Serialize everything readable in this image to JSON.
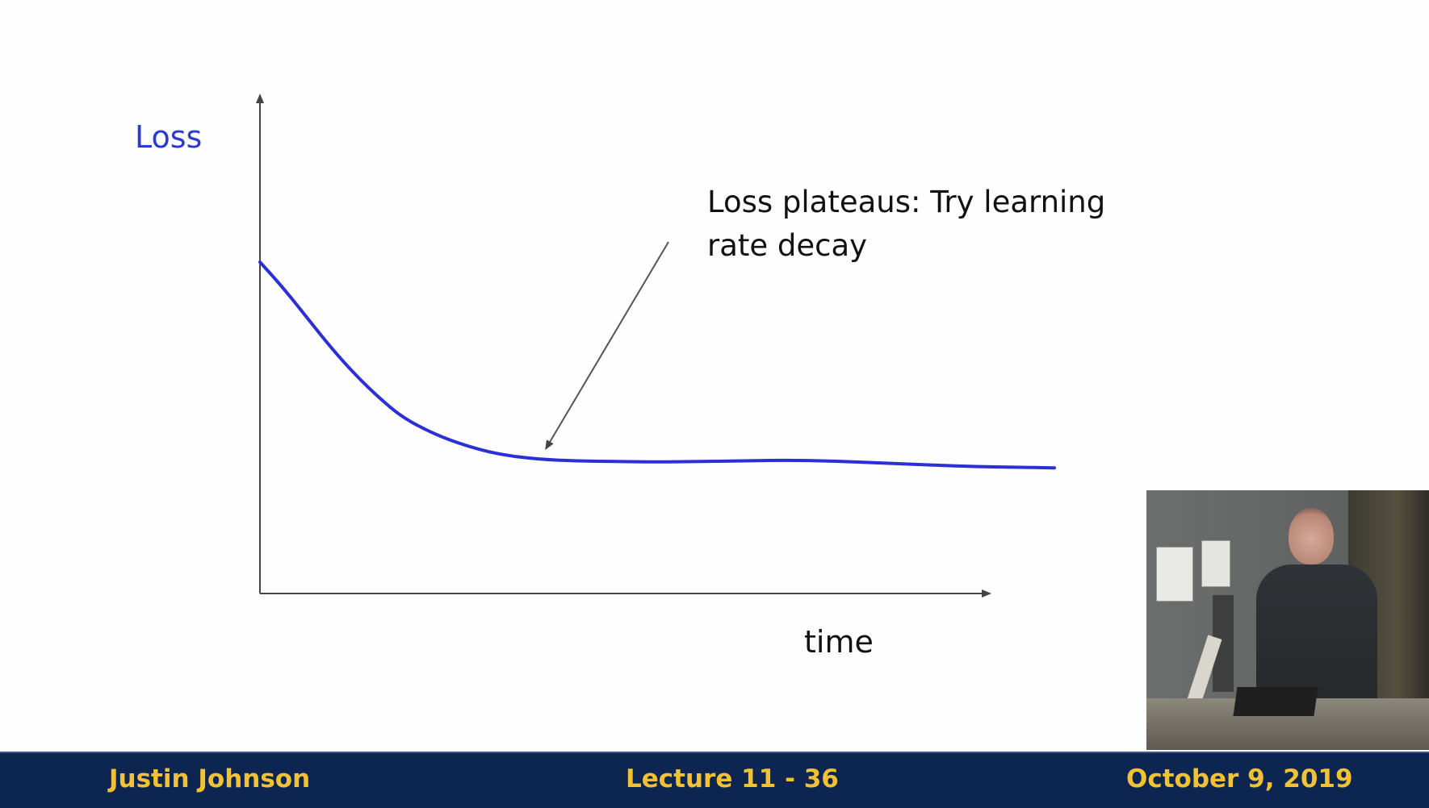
{
  "chart_data": {
    "type": "line",
    "title": "",
    "ylabel": "Loss",
    "xlabel": "time",
    "grid": false,
    "xlim": [
      0,
      1
    ],
    "ylim": [
      0,
      1
    ],
    "series": [
      {
        "color": "#2a2fd6",
        "x": [
          0.0,
          0.03,
          0.06,
          0.09,
          0.12,
          0.15,
          0.18,
          0.22,
          0.26,
          0.3,
          0.35,
          0.4,
          0.45,
          0.5,
          0.55,
          0.6,
          0.65,
          0.7,
          0.75,
          0.8,
          0.85,
          0.9,
          0.95,
          1.0
        ],
        "y": [
          1.0,
          0.92,
          0.83,
          0.74,
          0.66,
          0.59,
          0.53,
          0.48,
          0.445,
          0.42,
          0.405,
          0.4,
          0.398,
          0.397,
          0.398,
          0.4,
          0.402,
          0.401,
          0.397,
          0.392,
          0.387,
          0.383,
          0.381,
          0.379
        ]
      }
    ],
    "annotations": [
      {
        "text_lines": [
          "Loss plateaus: Try learning",
          "rate decay"
        ],
        "arrow_to": {
          "x": 0.36,
          "y": 0.408
        }
      }
    ]
  },
  "footer": {
    "left": "Justin Johnson",
    "center": "Lecture 11 - 36",
    "right": "October 9, 2019"
  },
  "colors": {
    "footer_bg": "#0c2551",
    "footer_text": "#f2c232",
    "loss_label": "#2a3bd1",
    "curve": "#2a2fd6"
  }
}
